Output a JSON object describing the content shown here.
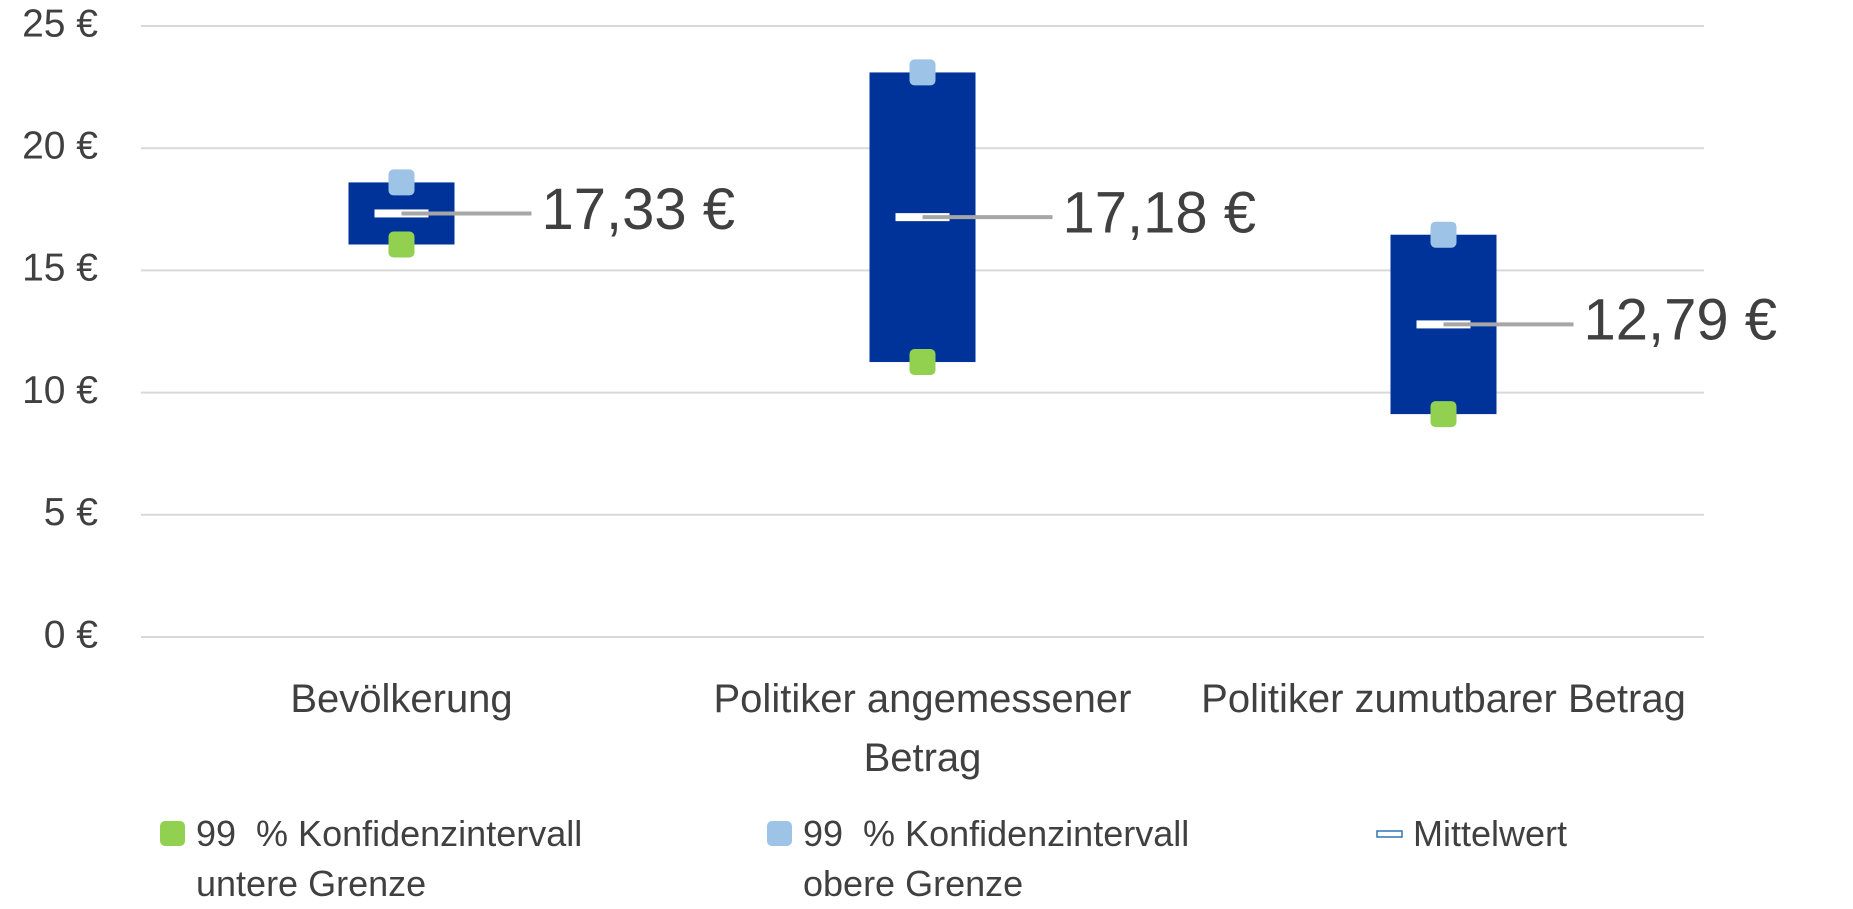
{
  "chart_data": {
    "type": "stock",
    "categories": [
      "Bevölkerung",
      "Politiker angemessener Betrag",
      "Politiker zumutbarer Betrag"
    ],
    "series": [
      {
        "name": "99  % Konfidenzintervall untere Grenze",
        "color": "#92d050",
        "values": [
          16.06,
          11.25,
          9.12
        ]
      },
      {
        "name": "99  % Konfidenzintervall obere Grenze",
        "color": "#9dc3e6",
        "values": [
          18.6,
          23.1,
          16.46
        ]
      },
      {
        "name": "Mittelwert",
        "color": "#ffffff",
        "values": [
          17.33,
          17.18,
          12.79
        ],
        "value_labels": [
          "17,33 €",
          "17,18 €",
          "12,79 €"
        ]
      }
    ],
    "bar_color": "#003399",
    "ylim": [
      0,
      25
    ],
    "yticks": [
      {
        "value": 0,
        "label": "0 €"
      },
      {
        "value": 5,
        "label": "5 €"
      },
      {
        "value": 10,
        "label": "10 €"
      },
      {
        "value": 15,
        "label": "15 €"
      },
      {
        "value": 20,
        "label": "20 €"
      },
      {
        "value": 25,
        "label": "25 €"
      }
    ],
    "grid": true
  }
}
